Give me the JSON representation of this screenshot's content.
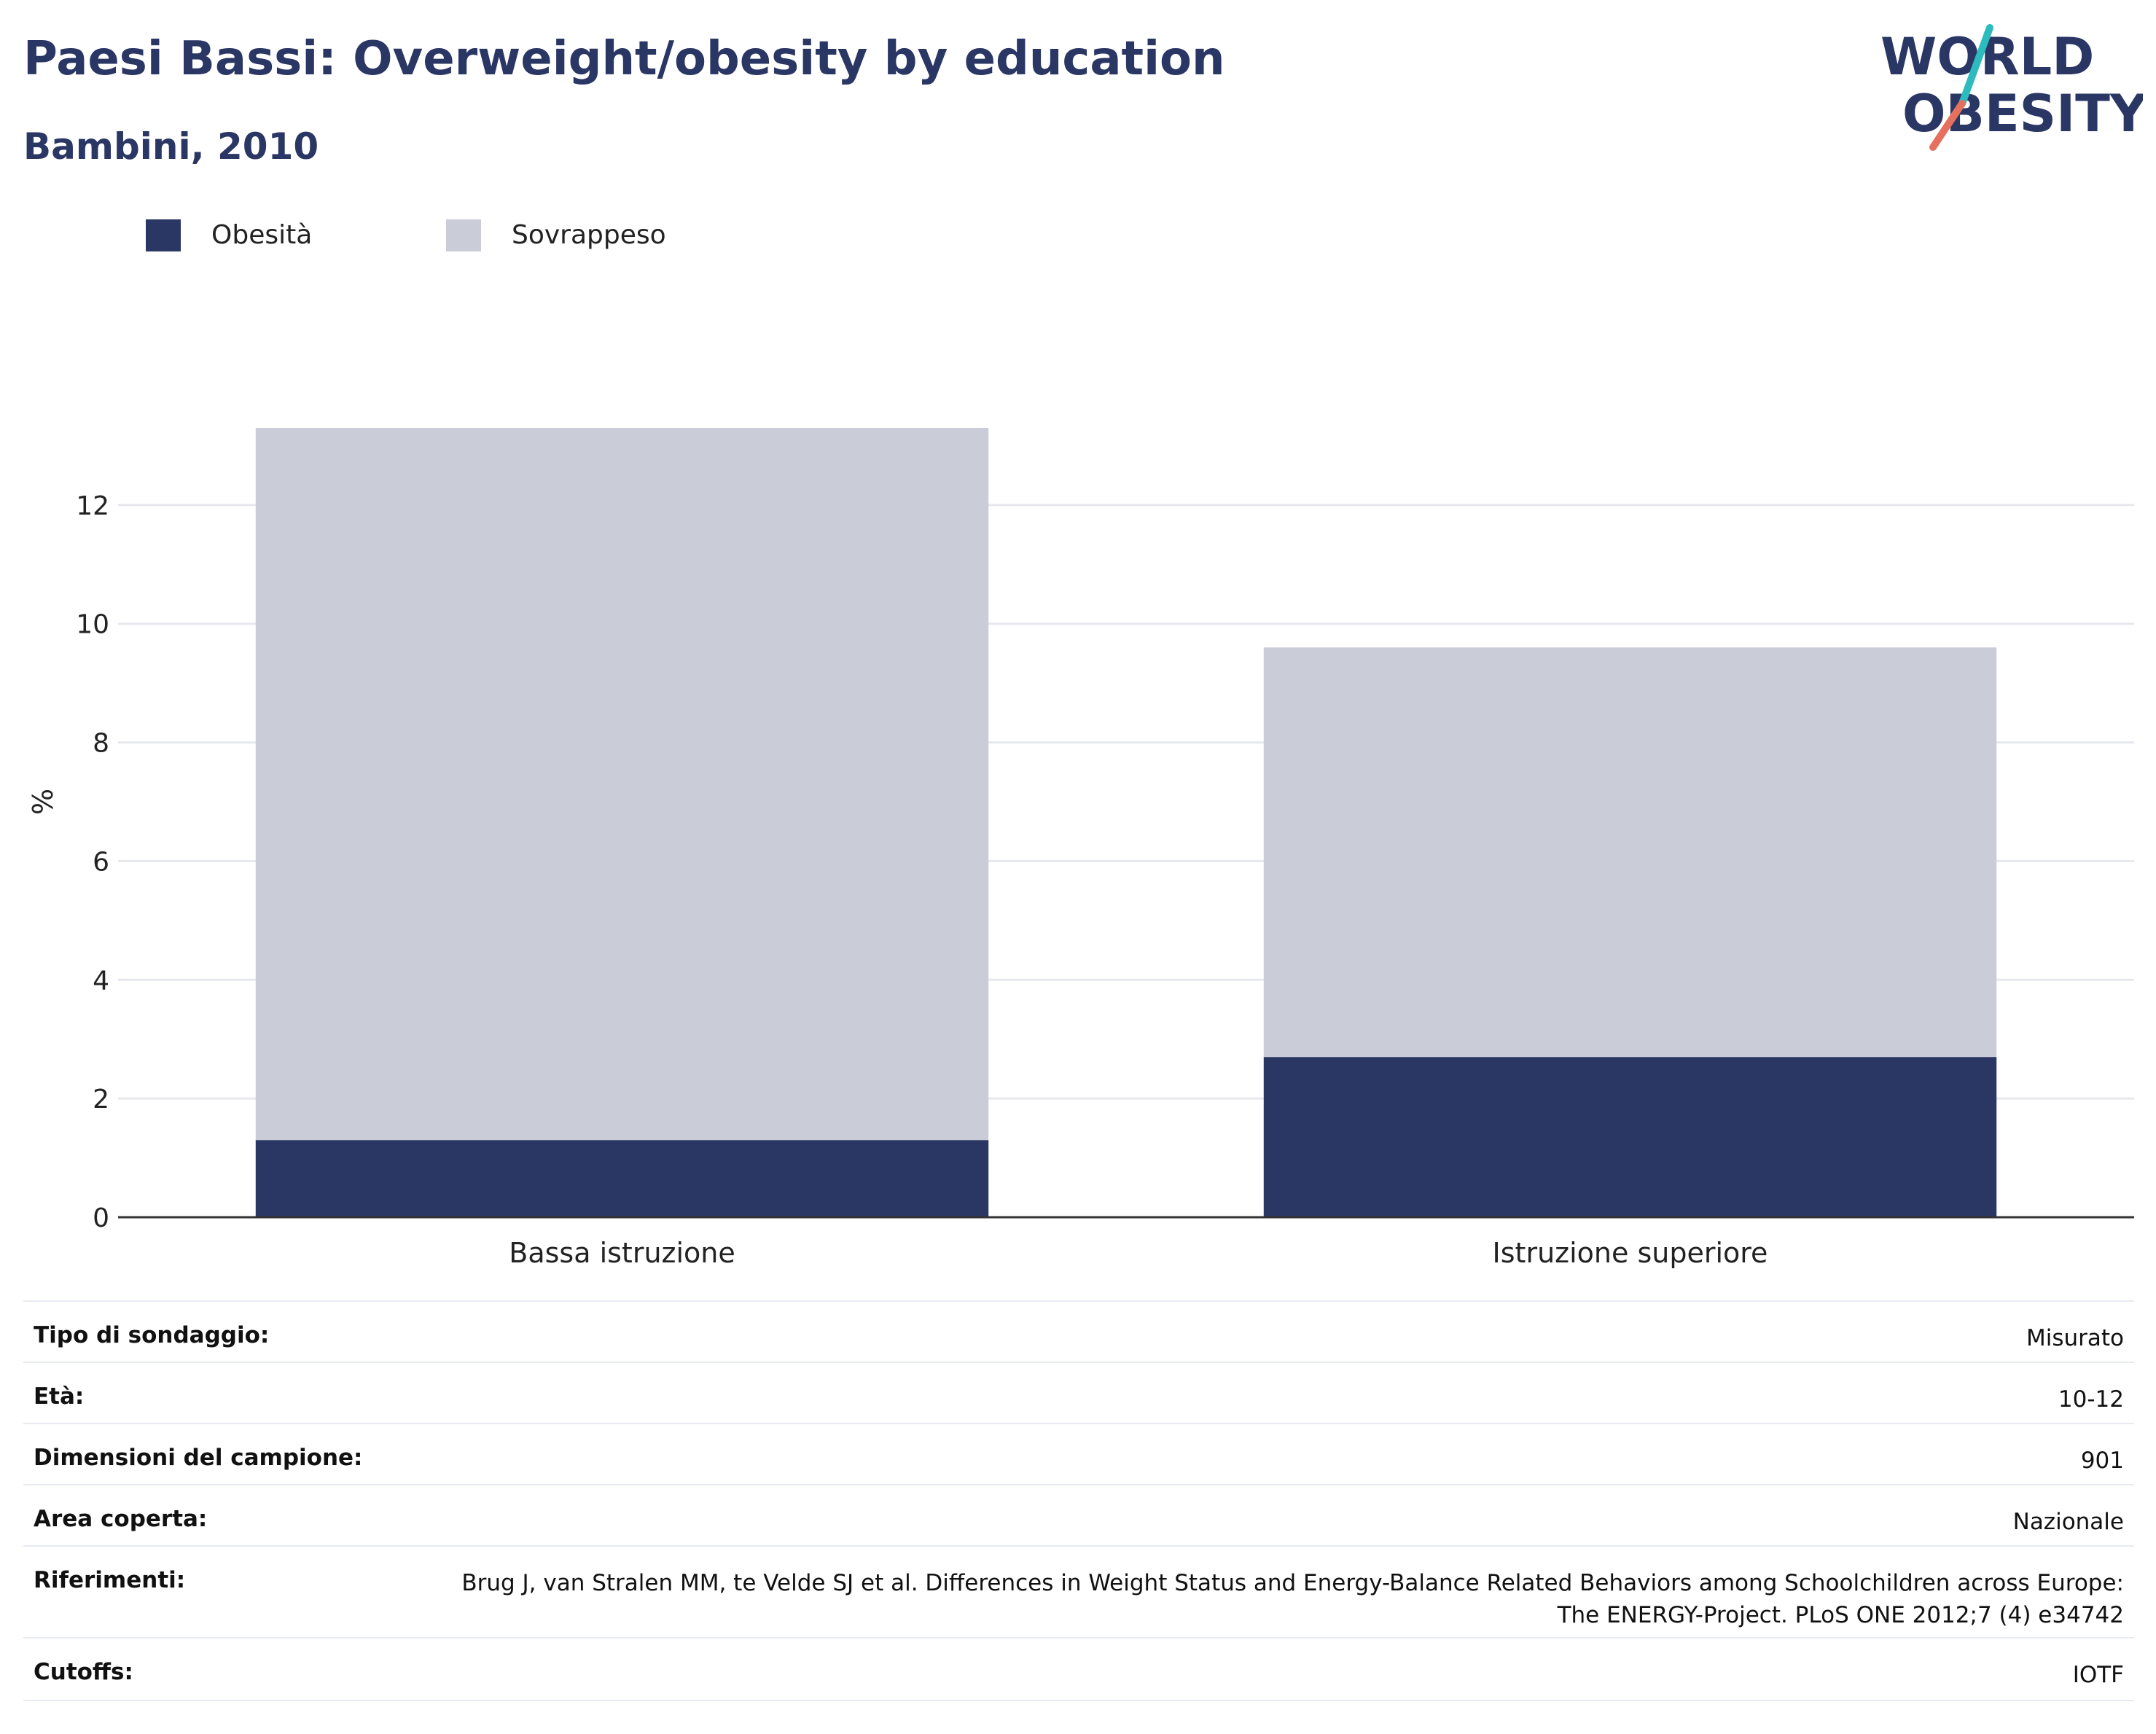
{
  "header": {
    "title": "Paesi Bassi: Overweight/obesity by education",
    "subtitle": "Bambini, 2010"
  },
  "logo": {
    "line1": "WORLD",
    "line2": "OBESITY"
  },
  "legend": [
    {
      "label": "Obesità",
      "color": "#2a3664"
    },
    {
      "label": "Sovrappeso",
      "color": "#cacdd8"
    }
  ],
  "chart_data": {
    "type": "bar",
    "stacked": true,
    "categories": [
      "Bassa istruzione",
      "Istruzione superiore"
    ],
    "series": [
      {
        "name": "Obesità",
        "values": [
          1.3,
          2.7
        ],
        "color": "#2a3664"
      },
      {
        "name": "Sovrappeso",
        "values": [
          12.0,
          6.9
        ],
        "color": "#cacdd8"
      }
    ],
    "ylabel": "%",
    "xlabel": "",
    "ylim": [
      0,
      14
    ],
    "yticks": [
      0,
      2,
      4,
      6,
      8,
      10,
      12
    ],
    "grid": true
  },
  "meta": [
    {
      "key": "Tipo di sondaggio:",
      "value": "Misurato"
    },
    {
      "key": "Età:",
      "value": "10-12"
    },
    {
      "key": "Dimensioni del campione:",
      "value": "901"
    },
    {
      "key": "Area coperta:",
      "value": "Nazionale"
    },
    {
      "key": "Riferimenti:",
      "value": "Brug J, van Stralen MM, te Velde SJ et al. Differences in Weight Status and Energy-Balance Related Behaviors among Schoolchildren across Europe: The ENERGY-Project. PLoS ONE 2012;7 (4) e34742"
    },
    {
      "key": "Cutoffs:",
      "value": "IOTF"
    }
  ]
}
